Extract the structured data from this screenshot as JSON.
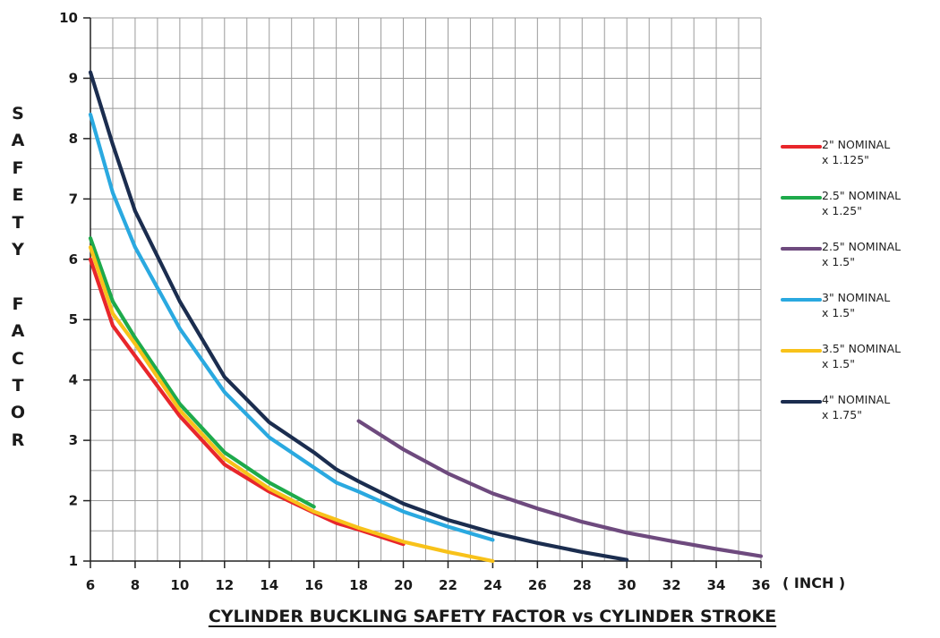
{
  "chart_data": {
    "type": "line",
    "title": "CYLINDER BUCKLING SAFETY FACTOR vs CYLINDER STROKE",
    "xlabel": "( INCH )",
    "ylabel": "SAFETY FACTOR",
    "xlim": [
      6,
      36
    ],
    "ylim": [
      1,
      10
    ],
    "x_ticks": [
      "6",
      "8",
      "10",
      "12",
      "14",
      "16",
      "18",
      "20",
      "22",
      "24",
      "26",
      "28",
      "30",
      "32",
      "34",
      "36"
    ],
    "y_ticks": [
      "1",
      "2",
      "3",
      "4",
      "5",
      "6",
      "7",
      "8",
      "9",
      "10"
    ],
    "grid": true,
    "legend_position": "right",
    "series": [
      {
        "name": "2\" NOMINAL",
        "name_line2": "x 1.125\"",
        "color": "#e8262b",
        "x": [
          6,
          7,
          8,
          10,
          12,
          14,
          16,
          17,
          18,
          19,
          20
        ],
        "y": [
          6.0,
          4.9,
          4.4,
          3.4,
          2.6,
          2.15,
          1.8,
          1.63,
          1.52,
          1.4,
          1.28
        ]
      },
      {
        "name": "2.5\" NOMINAL",
        "name_line2": "x 1.25\"",
        "color": "#1eaa4b",
        "x": [
          6,
          7,
          8,
          10,
          12,
          14,
          16
        ],
        "y": [
          6.35,
          5.3,
          4.7,
          3.6,
          2.8,
          2.3,
          1.9
        ]
      },
      {
        "name": "2.5\" NOMINAL",
        "name_line2": "x 1.5\"",
        "color": "#6e4a7e",
        "x": [
          18,
          20,
          22,
          24,
          26,
          28,
          30,
          32,
          34,
          36
        ],
        "y": [
          3.32,
          2.85,
          2.45,
          2.12,
          1.87,
          1.65,
          1.47,
          1.33,
          1.2,
          1.08
        ]
      },
      {
        "name": "3\" NOMINAL",
        "name_line2": "x 1.5\"",
        "color": "#2aa9e0",
        "x": [
          6,
          7,
          8,
          10,
          12,
          14,
          16,
          17,
          18,
          20,
          22,
          24
        ],
        "y": [
          8.4,
          7.1,
          6.2,
          4.85,
          3.8,
          3.05,
          2.55,
          2.3,
          2.15,
          1.82,
          1.57,
          1.35
        ]
      },
      {
        "name": "3.5\" NOMINAL",
        "name_line2": "x 1.5\"",
        "color": "#f8c21a",
        "x": [
          6,
          7,
          8,
          10,
          12,
          14,
          16,
          18,
          20,
          22,
          24
        ],
        "y": [
          6.2,
          5.1,
          4.6,
          3.5,
          2.7,
          2.2,
          1.82,
          1.55,
          1.32,
          1.15,
          1.0
        ]
      },
      {
        "name": "4\" NOMINAL",
        "name_line2": "x 1.75\"",
        "color": "#1b2d4f",
        "x": [
          6,
          7,
          8,
          10,
          12,
          14,
          16,
          17,
          18,
          20,
          22,
          24,
          26,
          28,
          30
        ],
        "y": [
          9.1,
          7.9,
          6.8,
          5.3,
          4.05,
          3.3,
          2.8,
          2.52,
          2.32,
          1.95,
          1.68,
          1.47,
          1.3,
          1.15,
          1.02
        ]
      }
    ]
  }
}
